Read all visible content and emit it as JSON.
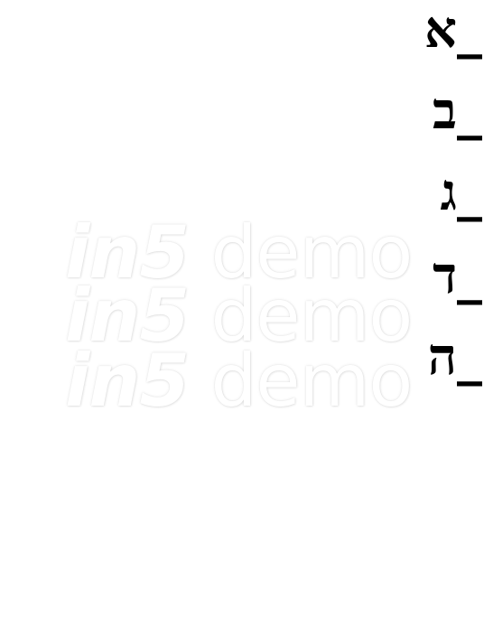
{
  "letters": [
    "_א",
    "_ב",
    "_ג",
    "_ד",
    "_ה"
  ],
  "watermark": {
    "brand": "in5",
    "word": "demo"
  }
}
